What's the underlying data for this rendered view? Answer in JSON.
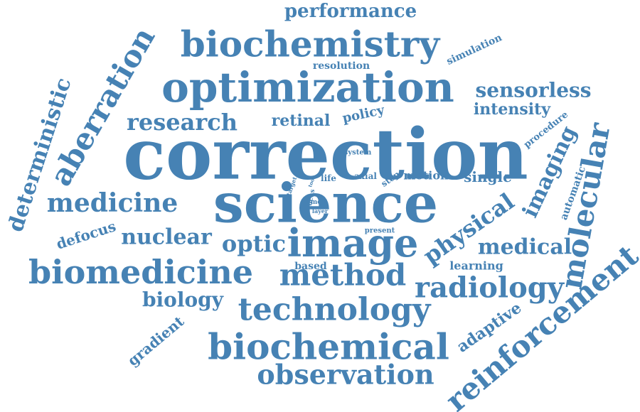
{
  "color": "#4682b4",
  "words": [
    {
      "key": "correction",
      "text": "correction"
    },
    {
      "key": "science",
      "text": "science"
    },
    {
      "key": "optimization",
      "text": "optimization"
    },
    {
      "key": "biochemistry",
      "text": "biochemistry"
    },
    {
      "key": "image",
      "text": "image"
    },
    {
      "key": "biomedicine",
      "text": "biomedicine"
    },
    {
      "key": "biochemical",
      "text": "biochemical"
    },
    {
      "key": "technology",
      "text": "technology"
    },
    {
      "key": "method",
      "text": "method"
    },
    {
      "key": "observation",
      "text": "observation"
    },
    {
      "key": "reinforcement",
      "text": "reinforcement"
    },
    {
      "key": "aberration",
      "text": "aberration"
    },
    {
      "key": "molecular",
      "text": "molecular"
    },
    {
      "key": "radiology",
      "text": "radiology"
    },
    {
      "key": "research",
      "text": "research"
    },
    {
      "key": "medicine",
      "text": "medicine"
    },
    {
      "key": "deterministic",
      "text": "deterministic"
    },
    {
      "key": "physical",
      "text": "physical"
    },
    {
      "key": "imaging",
      "text": "imaging"
    },
    {
      "key": "performance",
      "text": "performance"
    },
    {
      "key": "sensorless",
      "text": "sensorless"
    },
    {
      "key": "nuclear",
      "text": "nuclear"
    },
    {
      "key": "optic",
      "text": "optic"
    },
    {
      "key": "medical",
      "text": "medical"
    },
    {
      "key": "biology",
      "text": "biology"
    },
    {
      "key": "retinal",
      "text": "retinal"
    },
    {
      "key": "intensity",
      "text": "intensity"
    },
    {
      "key": "adaptive",
      "text": "adaptive"
    },
    {
      "key": "gradient",
      "text": "gradient"
    },
    {
      "key": "defocus",
      "text": "defocus"
    },
    {
      "key": "single",
      "text": "single"
    },
    {
      "key": "automatic",
      "text": "automatic"
    },
    {
      "key": "policy",
      "text": "policy"
    },
    {
      "key": "motion",
      "text": "motion"
    },
    {
      "key": "learning",
      "text": "learning"
    },
    {
      "key": "resolution",
      "text": "resolution"
    },
    {
      "key": "simulation",
      "text": "simulation"
    },
    {
      "key": "procedure",
      "text": "procedure"
    },
    {
      "key": "based",
      "text": "based"
    },
    {
      "key": "axial",
      "text": "axial"
    },
    {
      "key": "step",
      "text": "step"
    },
    {
      "key": "life",
      "text": "life"
    },
    {
      "key": "system",
      "text": "system"
    },
    {
      "key": "present",
      "text": "present"
    },
    {
      "key": "focus",
      "text": "focus"
    },
    {
      "key": "mos",
      "text": "mos"
    },
    {
      "key": "layer",
      "text": "layer"
    },
    {
      "key": "target",
      "text": "target"
    },
    {
      "key": "tool",
      "text": "tool"
    }
  ]
}
